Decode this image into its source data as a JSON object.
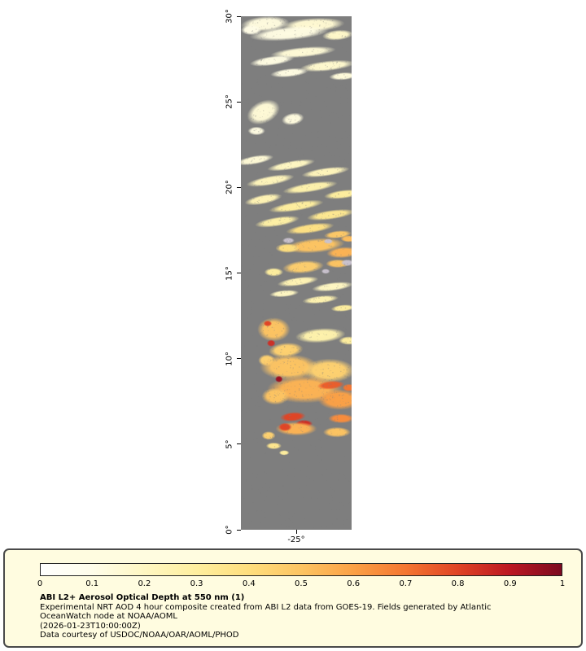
{
  "page": {
    "background": "#ffffff"
  },
  "chart_data": {
    "type": "heatmap",
    "title": "ABI L2+ Aerosol Optical Depth at 550 nm (1)",
    "colorbar": {
      "min": 0,
      "max": 1,
      "tick_labels": [
        "0",
        "0.1",
        "0.2",
        "0.3",
        "0.4",
        "0.5",
        "0.6",
        "0.7",
        "0.8",
        "0.9",
        "1"
      ],
      "stops": [
        "#ffffff",
        "#fffdea",
        "#fff7c2",
        "#feee9e",
        "#fede7d",
        "#fdc462",
        "#fba146",
        "#f47631",
        "#e04425",
        "#bc1722",
        "#7c0a20"
      ]
    },
    "extent": {
      "lon_min": -28.2,
      "lon_max": -21.8,
      "lat_min": 0,
      "lat_max": 30
    },
    "no_data_color": "#7e7e7e",
    "cloud_color": "#c9c2ce",
    "lat_ticks": [
      {
        "lat": 30,
        "label": "30°"
      },
      {
        "lat": 25,
        "label": "25°"
      },
      {
        "lat": 20,
        "label": "20°"
      },
      {
        "lat": 15,
        "label": "15°"
      },
      {
        "lat": 10,
        "label": "10°"
      },
      {
        "lat": 5,
        "label": "5°"
      },
      {
        "lat": 0,
        "label": "0°"
      }
    ],
    "lon_ticks": [
      {
        "lon": -25,
        "label": "-25°"
      }
    ],
    "aod_patches": [
      {
        "lon": -26.8,
        "lat": 29.55,
        "w": 2.8,
        "h": 0.9,
        "rot": -4,
        "aod": 0.13
      },
      {
        "lon": -24.0,
        "lat": 29.5,
        "w": 3.6,
        "h": 0.8,
        "rot": -3,
        "aod": 0.16
      },
      {
        "lon": -25.4,
        "lat": 29.0,
        "w": 4.6,
        "h": 0.8,
        "rot": -5,
        "aod": 0.12
      },
      {
        "lon": -22.6,
        "lat": 28.9,
        "w": 1.8,
        "h": 0.6,
        "rot": -5,
        "aod": 0.18
      },
      {
        "lon": -27.6,
        "lat": 29.2,
        "w": 1.2,
        "h": 0.6,
        "rot": 0,
        "aod": 0.11
      },
      {
        "lon": -24.6,
        "lat": 27.9,
        "w": 3.8,
        "h": 0.6,
        "rot": -5,
        "aod": 0.15
      },
      {
        "lon": -26.4,
        "lat": 27.4,
        "w": 2.6,
        "h": 0.55,
        "rot": -8,
        "aod": 0.12
      },
      {
        "lon": -23.2,
        "lat": 27.1,
        "w": 3.2,
        "h": 0.6,
        "rot": -6,
        "aod": 0.17
      },
      {
        "lon": -25.4,
        "lat": 26.7,
        "w": 2.2,
        "h": 0.5,
        "rot": -6,
        "aod": 0.12
      },
      {
        "lon": -22.3,
        "lat": 26.5,
        "w": 1.6,
        "h": 0.45,
        "rot": -4,
        "aod": 0.14
      },
      {
        "lon": -26.9,
        "lat": 24.4,
        "w": 2.0,
        "h": 1.3,
        "rot": -25,
        "aod": 0.15
      },
      {
        "lon": -25.2,
        "lat": 24.0,
        "w": 1.3,
        "h": 0.7,
        "rot": -10,
        "aod": 0.13
      },
      {
        "lon": -27.3,
        "lat": 23.3,
        "w": 1.0,
        "h": 0.5,
        "rot": 0,
        "aod": 0.12
      },
      {
        "lon": -27.4,
        "lat": 21.6,
        "w": 2.2,
        "h": 0.5,
        "rot": -10,
        "aod": 0.15
      },
      {
        "lon": -25.3,
        "lat": 21.3,
        "w": 2.8,
        "h": 0.5,
        "rot": -10,
        "aod": 0.2
      },
      {
        "lon": -23.3,
        "lat": 20.9,
        "w": 2.8,
        "h": 0.5,
        "rot": -8,
        "aod": 0.22
      },
      {
        "lon": -26.5,
        "lat": 20.4,
        "w": 2.8,
        "h": 0.55,
        "rot": -10,
        "aod": 0.22
      },
      {
        "lon": -24.2,
        "lat": 20.0,
        "w": 3.2,
        "h": 0.55,
        "rot": -9,
        "aod": 0.26
      },
      {
        "lon": -22.3,
        "lat": 19.6,
        "w": 2.2,
        "h": 0.5,
        "rot": -7,
        "aod": 0.3
      },
      {
        "lon": -26.9,
        "lat": 19.3,
        "w": 2.2,
        "h": 0.55,
        "rot": -11,
        "aod": 0.24
      },
      {
        "lon": -25.0,
        "lat": 18.9,
        "w": 3.2,
        "h": 0.55,
        "rot": -9,
        "aod": 0.3
      },
      {
        "lon": -23.0,
        "lat": 18.4,
        "w": 2.8,
        "h": 0.55,
        "rot": -8,
        "aod": 0.34
      },
      {
        "lon": -26.1,
        "lat": 18.0,
        "w": 2.6,
        "h": 0.55,
        "rot": -9,
        "aod": 0.28
      },
      {
        "lon": -24.2,
        "lat": 17.6,
        "w": 2.8,
        "h": 0.55,
        "rot": -8,
        "aod": 0.38
      },
      {
        "lon": -22.6,
        "lat": 17.25,
        "w": 1.6,
        "h": 0.45,
        "rot": -6,
        "aod": 0.48
      },
      {
        "lon": -21.95,
        "lat": 17.0,
        "w": 1.0,
        "h": 0.4,
        "rot": 0,
        "aod": 0.52
      },
      {
        "lon": -23.9,
        "lat": 16.6,
        "w": 3.4,
        "h": 0.85,
        "rot": -5,
        "aod": 0.5
      },
      {
        "lon": -22.3,
        "lat": 16.2,
        "w": 1.9,
        "h": 0.65,
        "rot": -4,
        "aod": 0.55
      },
      {
        "lon": -25.5,
        "lat": 16.45,
        "w": 1.4,
        "h": 0.55,
        "rot": 0,
        "aod": 0.4
      },
      {
        "lon": -24.6,
        "lat": 15.35,
        "w": 2.4,
        "h": 0.75,
        "rot": -5,
        "aod": 0.46
      },
      {
        "lon": -26.3,
        "lat": 15.05,
        "w": 1.1,
        "h": 0.5,
        "rot": 0,
        "aod": 0.3
      },
      {
        "lon": -22.6,
        "lat": 15.55,
        "w": 1.4,
        "h": 0.5,
        "rot": 0,
        "aod": 0.5
      },
      {
        "lon": -24.9,
        "lat": 14.5,
        "w": 2.4,
        "h": 0.5,
        "rot": -8,
        "aod": 0.24
      },
      {
        "lon": -22.9,
        "lat": 14.2,
        "w": 2.4,
        "h": 0.5,
        "rot": -7,
        "aod": 0.2
      },
      {
        "lon": -25.7,
        "lat": 13.8,
        "w": 1.7,
        "h": 0.4,
        "rot": -5,
        "aod": 0.2
      },
      {
        "lon": -23.6,
        "lat": 13.45,
        "w": 2.1,
        "h": 0.45,
        "rot": -6,
        "aod": 0.25
      },
      {
        "lon": -22.3,
        "lat": 12.95,
        "w": 1.4,
        "h": 0.4,
        "rot": -5,
        "aod": 0.3
      },
      {
        "lon": -26.3,
        "lat": 11.7,
        "w": 1.9,
        "h": 1.4,
        "rot": 0,
        "aod": 0.5
      },
      {
        "lon": -26.65,
        "lat": 12.05,
        "w": 0.5,
        "h": 0.35,
        "rot": 0,
        "aod": 0.8
      },
      {
        "lon": -23.6,
        "lat": 11.35,
        "w": 2.9,
        "h": 0.85,
        "rot": -4,
        "aod": 0.26
      },
      {
        "lon": -21.95,
        "lat": 11.05,
        "w": 1.2,
        "h": 0.5,
        "rot": 0,
        "aod": 0.3
      },
      {
        "lon": -26.45,
        "lat": 10.9,
        "w": 0.5,
        "h": 0.4,
        "rot": 0,
        "aod": 0.85
      },
      {
        "lon": -25.6,
        "lat": 10.5,
        "w": 2.0,
        "h": 0.85,
        "rot": -5,
        "aod": 0.45
      },
      {
        "lon": -26.7,
        "lat": 9.9,
        "w": 1.0,
        "h": 0.7,
        "rot": 0,
        "aod": 0.45
      },
      {
        "lon": -25.4,
        "lat": 9.5,
        "w": 3.4,
        "h": 1.5,
        "rot": 0,
        "aod": 0.5
      },
      {
        "lon": -23.1,
        "lat": 9.3,
        "w": 3.0,
        "h": 1.4,
        "rot": 0,
        "aod": 0.45
      },
      {
        "lon": -24.5,
        "lat": 8.2,
        "w": 4.4,
        "h": 1.6,
        "rot": 0,
        "aod": 0.55
      },
      {
        "lon": -22.5,
        "lat": 7.6,
        "w": 2.5,
        "h": 1.2,
        "rot": 0,
        "aod": 0.6
      },
      {
        "lon": -26.2,
        "lat": 7.8,
        "w": 1.6,
        "h": 1.0,
        "rot": 0,
        "aod": 0.5
      },
      {
        "lon": -26.0,
        "lat": 8.8,
        "w": 0.45,
        "h": 0.4,
        "rot": 0,
        "aod": 0.95
      },
      {
        "lon": -23.0,
        "lat": 8.45,
        "w": 1.6,
        "h": 0.5,
        "rot": -5,
        "aod": 0.75
      },
      {
        "lon": -21.95,
        "lat": 8.3,
        "w": 0.8,
        "h": 0.45,
        "rot": 0,
        "aod": 0.7
      },
      {
        "lon": -25.2,
        "lat": 6.6,
        "w": 1.5,
        "h": 0.55,
        "rot": -5,
        "aod": 0.8
      },
      {
        "lon": -24.55,
        "lat": 6.2,
        "w": 1.0,
        "h": 0.45,
        "rot": 0,
        "aod": 0.85
      },
      {
        "lon": -22.4,
        "lat": 6.5,
        "w": 1.5,
        "h": 0.55,
        "rot": 0,
        "aod": 0.65
      },
      {
        "lon": -25.0,
        "lat": 5.9,
        "w": 2.4,
        "h": 0.8,
        "rot": 0,
        "aod": 0.55
      },
      {
        "lon": -25.65,
        "lat": 6.0,
        "w": 0.8,
        "h": 0.5,
        "rot": 0,
        "aod": 0.8
      },
      {
        "lon": -22.65,
        "lat": 5.7,
        "w": 1.6,
        "h": 0.6,
        "rot": 0,
        "aod": 0.5
      },
      {
        "lon": -26.6,
        "lat": 5.5,
        "w": 0.8,
        "h": 0.5,
        "rot": 0,
        "aod": 0.45
      },
      {
        "lon": -26.3,
        "lat": 4.9,
        "w": 0.9,
        "h": 0.4,
        "rot": 0,
        "aod": 0.35
      },
      {
        "lon": -25.7,
        "lat": 4.5,
        "w": 0.6,
        "h": 0.3,
        "rot": 0,
        "aod": 0.3
      }
    ],
    "cloud_patches": [
      {
        "lon": -25.45,
        "lat": 16.9,
        "w": 0.7,
        "h": 0.35
      },
      {
        "lon": -23.15,
        "lat": 16.85,
        "w": 0.55,
        "h": 0.3
      },
      {
        "lon": -22.05,
        "lat": 15.6,
        "w": 0.75,
        "h": 0.4
      },
      {
        "lon": -23.3,
        "lat": 15.1,
        "w": 0.5,
        "h": 0.3
      }
    ]
  },
  "legend": {
    "background": "#fffce0",
    "title": "ABI L2+ Aerosol Optical Depth at 550 nm (1)",
    "description": "Experimental NRT AOD 4 hour composite created from ABI L2 data from GOES-19. Fields generated by Atlantic OceanWatch node at NOAA/AOML",
    "timestamp": "(2026-01-23T10:00:00Z)",
    "credit": "Data courtesy of USDOC/NOAA/OAR/AOML/PHOD"
  }
}
